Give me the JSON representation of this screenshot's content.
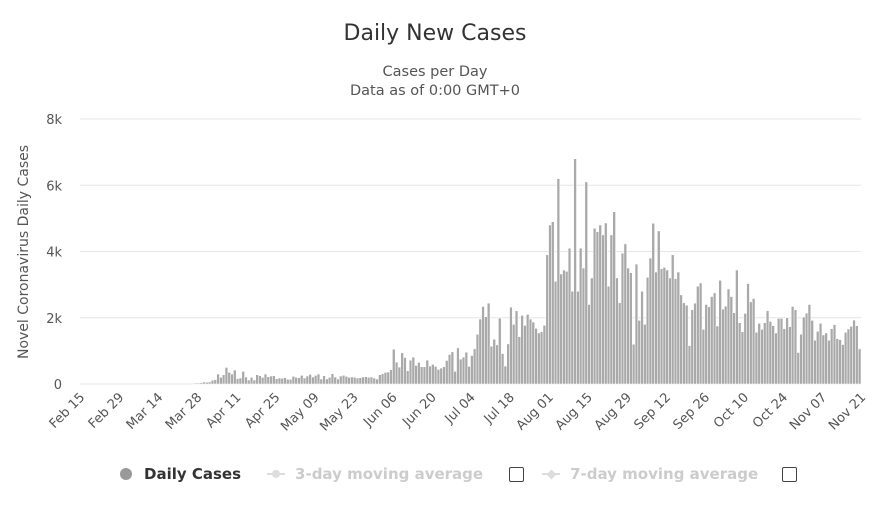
{
  "chart_data": {
    "type": "bar",
    "title": "Daily New Cases",
    "subtitle_lines": [
      "Cases per Day",
      "Data as of 0:00 GMT+0"
    ],
    "xlabel": "",
    "ylabel": "Novel Coronavirus Daily Cases",
    "ylim": [
      0,
      8000
    ],
    "y_ticks": [
      {
        "value": 0,
        "label": "0"
      },
      {
        "value": 2000,
        "label": "2k"
      },
      {
        "value": 4000,
        "label": "4k"
      },
      {
        "value": 6000,
        "label": "6k"
      },
      {
        "value": 8000,
        "label": "8k"
      }
    ],
    "x_tick_labels": [
      "Feb 15",
      "Feb 29",
      "Mar 14",
      "Mar 28",
      "Apr 11",
      "Apr 25",
      "May 09",
      "May 23",
      "Jun 06",
      "Jun 20",
      "Jul 04",
      "Jul 18",
      "Aug 01",
      "Aug 15",
      "Aug 29",
      "Sep 12",
      "Sep 26",
      "Oct 10",
      "Oct 24",
      "Nov 07",
      "Nov 21"
    ],
    "x_tick_interval_days": 14,
    "start_date": "Feb 15",
    "end_date": "Nov 24",
    "grid": true,
    "series": [
      {
        "name": "Daily Cases",
        "values": [
          0,
          0,
          0,
          0,
          0,
          0,
          0,
          0,
          0,
          0,
          0,
          0,
          0,
          0,
          0,
          0,
          0,
          0,
          0,
          0,
          0,
          0,
          0,
          0,
          0,
          0,
          0,
          0,
          0,
          0,
          0,
          0,
          0,
          0,
          0,
          0,
          0,
          0,
          0,
          0,
          20,
          30,
          30,
          40,
          60,
          50,
          60,
          110,
          130,
          300,
          200,
          280,
          500,
          350,
          300,
          420,
          160,
          180,
          380,
          210,
          120,
          200,
          120,
          280,
          250,
          200,
          300,
          220,
          240,
          250,
          160,
          180,
          170,
          190,
          140,
          140,
          230,
          200,
          190,
          260,
          180,
          240,
          290,
          210,
          260,
          300,
          150,
          250,
          150,
          200,
          310,
          210,
          150,
          240,
          260,
          230,
          200,
          210,
          200,
          180,
          190,
          210,
          220,
          200,
          210,
          180,
          150,
          280,
          310,
          350,
          360,
          430,
          1050,
          660,
          510,
          940,
          800,
          400,
          720,
          810,
          560,
          650,
          520,
          520,
          720,
          540,
          590,
          530,
          440,
          480,
          520,
          710,
          890,
          970,
          380,
          1090,
          750,
          810,
          960,
          530,
          860,
          1060,
          1500,
          1960,
          2340,
          2030,
          2440,
          1140,
          1350,
          1180,
          1990,
          920,
          540,
          1210,
          2320,
          1800,
          2210,
          1430,
          2070,
          1770,
          2100,
          1960,
          1870,
          1680,
          1540,
          1580,
          1770,
          3900,
          4800,
          4900,
          3100,
          6200,
          3320,
          3440,
          3400,
          4100,
          2800,
          6800,
          2800,
          4100,
          3500,
          6100,
          2400,
          3200,
          4700,
          4600,
          4800,
          4500,
          4860,
          2950,
          4500,
          5200,
          3200,
          2450,
          3950,
          4230,
          3500,
          3360,
          1200,
          3620,
          1920,
          2800,
          1800,
          3220,
          3800,
          4850,
          3380,
          4620,
          3480,
          3520,
          3440,
          3200,
          3900,
          3180,
          3380,
          2690,
          2450,
          2380,
          1160,
          2240,
          2440,
          2950,
          3050,
          1650,
          2400,
          2330,
          2640,
          2750,
          1750,
          3130,
          2260,
          2350,
          2870,
          2640,
          2150,
          3440,
          1850,
          1580,
          2130,
          3030,
          2480,
          2580,
          1560,
          1830,
          1650,
          1850,
          2210,
          1890,
          1760,
          1540,
          1980,
          1980,
          1670,
          2000,
          1730,
          2340,
          2240,
          950,
          1500,
          2020,
          2140,
          2400,
          1920,
          1320,
          1590,
          1830,
          1480,
          1540,
          1320,
          1670,
          1790,
          1370,
          1340,
          1190,
          1560,
          1660,
          1740,
          1930,
          1760,
          1060
        ]
      }
    ]
  },
  "legend": {
    "items": [
      {
        "label": "Daily Cases",
        "active": true
      },
      {
        "label": "3-day moving average",
        "active": false
      },
      {
        "label": "7-day moving average",
        "active": false
      }
    ]
  },
  "colors": {
    "bar": "#a9a9a9",
    "grid": "#e6e6e6",
    "text": "#333333",
    "axis_text": "#555555",
    "inactive_legend": "#cccccc"
  }
}
